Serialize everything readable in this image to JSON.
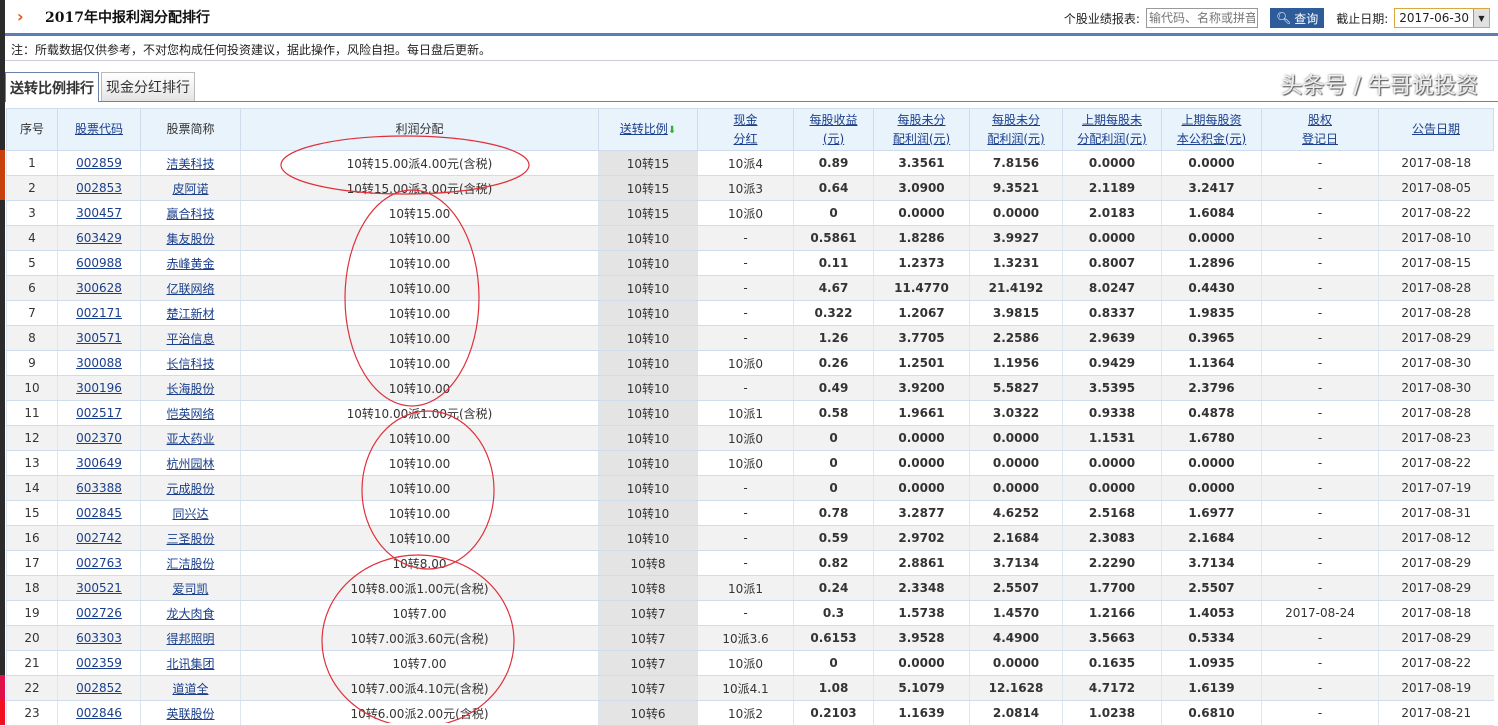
{
  "header": {
    "title": "2017年中报利润分配排行",
    "search_label": "个股业绩报表:",
    "search_placeholder": "输代码、名称或拼音",
    "query_button": "查询",
    "date_label": "截止日期:",
    "date_value": "2017-06-30"
  },
  "note": "注：所载数据仅供参考，不对您构成任何投资建议，据此操作，风险自担。每日盘后更新。",
  "tabs": [
    {
      "label": "送转比例排行",
      "active": true
    },
    {
      "label": "现金分红排行",
      "active": false
    }
  ],
  "columns": [
    "序号",
    "股票代码",
    "股票简称",
    "利润分配",
    "送转比例",
    "现金\n分红",
    "每股收益\n(元)",
    "每股未分\n配利润(元)",
    "每股未分\n配利润(元)",
    "上期每股未\n分配利润(元)",
    "上期每股资\n本公积金(元)",
    "股权\n登记日",
    "公告日期"
  ],
  "rows": [
    [
      "1",
      "002859",
      "洁美科技",
      "10转15.00派4.00元(含税)",
      "10转15",
      "10派4",
      "0.89",
      "3.3561",
      "7.8156",
      "0.0000",
      "0.0000",
      "-",
      "2017-08-18"
    ],
    [
      "2",
      "002853",
      "皮阿诺",
      "10转15.00派3.00元(含税)",
      "10转15",
      "10派3",
      "0.64",
      "3.0900",
      "9.3521",
      "2.1189",
      "3.2417",
      "-",
      "2017-08-05"
    ],
    [
      "3",
      "300457",
      "赢合科技",
      "10转15.00",
      "10转15",
      "10派0",
      "0",
      "0.0000",
      "0.0000",
      "2.0183",
      "1.6084",
      "-",
      "2017-08-22"
    ],
    [
      "4",
      "603429",
      "集友股份",
      "10转10.00",
      "10转10",
      "-",
      "0.5861",
      "1.8286",
      "3.9927",
      "0.0000",
      "0.0000",
      "-",
      "2017-08-10"
    ],
    [
      "5",
      "600988",
      "赤峰黄金",
      "10转10.00",
      "10转10",
      "-",
      "0.11",
      "1.2373",
      "1.3231",
      "0.8007",
      "1.2896",
      "-",
      "2017-08-15"
    ],
    [
      "6",
      "300628",
      "亿联网络",
      "10转10.00",
      "10转10",
      "-",
      "4.67",
      "11.4770",
      "21.4192",
      "8.0247",
      "0.4430",
      "-",
      "2017-08-28"
    ],
    [
      "7",
      "002171",
      "楚江新材",
      "10转10.00",
      "10转10",
      "-",
      "0.322",
      "1.2067",
      "3.9815",
      "0.8337",
      "1.9835",
      "-",
      "2017-08-28"
    ],
    [
      "8",
      "300571",
      "平治信息",
      "10转10.00",
      "10转10",
      "-",
      "1.26",
      "3.7705",
      "2.2586",
      "2.9639",
      "0.3965",
      "-",
      "2017-08-29"
    ],
    [
      "9",
      "300088",
      "长信科技",
      "10转10.00",
      "10转10",
      "10派0",
      "0.26",
      "1.2501",
      "1.1956",
      "0.9429",
      "1.1364",
      "-",
      "2017-08-30"
    ],
    [
      "10",
      "300196",
      "长海股份",
      "10转10.00",
      "10转10",
      "-",
      "0.49",
      "3.9200",
      "5.5827",
      "3.5395",
      "2.3796",
      "-",
      "2017-08-30"
    ],
    [
      "11",
      "002517",
      "恺英网络",
      "10转10.00派1.00元(含税)",
      "10转10",
      "10派1",
      "0.58",
      "1.9661",
      "3.0322",
      "0.9338",
      "0.4878",
      "-",
      "2017-08-28"
    ],
    [
      "12",
      "002370",
      "亚太药业",
      "10转10.00",
      "10转10",
      "10派0",
      "0",
      "0.0000",
      "0.0000",
      "1.1531",
      "1.6780",
      "-",
      "2017-08-23"
    ],
    [
      "13",
      "300649",
      "杭州园林",
      "10转10.00",
      "10转10",
      "10派0",
      "0",
      "0.0000",
      "0.0000",
      "0.0000",
      "0.0000",
      "-",
      "2017-08-22"
    ],
    [
      "14",
      "603388",
      "元成股份",
      "10转10.00",
      "10转10",
      "-",
      "0",
      "0.0000",
      "0.0000",
      "0.0000",
      "0.0000",
      "-",
      "2017-07-19"
    ],
    [
      "15",
      "002845",
      "同兴达",
      "10转10.00",
      "10转10",
      "-",
      "0.78",
      "3.2877",
      "4.6252",
      "2.5168",
      "1.6977",
      "-",
      "2017-08-31"
    ],
    [
      "16",
      "002742",
      "三圣股份",
      "10转10.00",
      "10转10",
      "-",
      "0.59",
      "2.9702",
      "2.1684",
      "2.3083",
      "2.1684",
      "-",
      "2017-08-12"
    ],
    [
      "17",
      "002763",
      "汇洁股份",
      "10转8.00",
      "10转8",
      "-",
      "0.82",
      "2.8861",
      "3.7134",
      "2.2290",
      "3.7134",
      "-",
      "2017-08-29"
    ],
    [
      "18",
      "300521",
      "爱司凯",
      "10转8.00派1.00元(含税)",
      "10转8",
      "10派1",
      "0.24",
      "2.3348",
      "2.5507",
      "1.7700",
      "2.5507",
      "-",
      "2017-08-29"
    ],
    [
      "19",
      "002726",
      "龙大肉食",
      "10转7.00",
      "10转7",
      "-",
      "0.3",
      "1.5738",
      "1.4570",
      "1.2166",
      "1.4053",
      "2017-08-24",
      "2017-08-18"
    ],
    [
      "20",
      "603303",
      "得邦照明",
      "10转7.00派3.60元(含税)",
      "10转7",
      "10派3.6",
      "0.6153",
      "3.9528",
      "4.4900",
      "3.5663",
      "0.5334",
      "-",
      "2017-08-29"
    ],
    [
      "21",
      "002359",
      "北讯集团",
      "10转7.00",
      "10转7",
      "10派0",
      "0",
      "0.0000",
      "0.0000",
      "0.1635",
      "1.0935",
      "-",
      "2017-08-22"
    ],
    [
      "22",
      "002852",
      "道道全",
      "10转7.00派4.10元(含税)",
      "10转7",
      "10派4.1",
      "1.08",
      "5.1079",
      "12.1628",
      "4.7172",
      "1.6139",
      "-",
      "2017-08-19"
    ],
    [
      "23",
      "002846",
      "英联股份",
      "10转6.00派2.00元(含税)",
      "10转6",
      "10派2",
      "0.2103",
      "1.1639",
      "2.0814",
      "1.0238",
      "0.6810",
      "-",
      "2017-08-21"
    ]
  ],
  "sort_icon": "arrow-down-icon",
  "annotation_color": "#e0303a",
  "watermark": "头条号 / 牛哥说投资"
}
